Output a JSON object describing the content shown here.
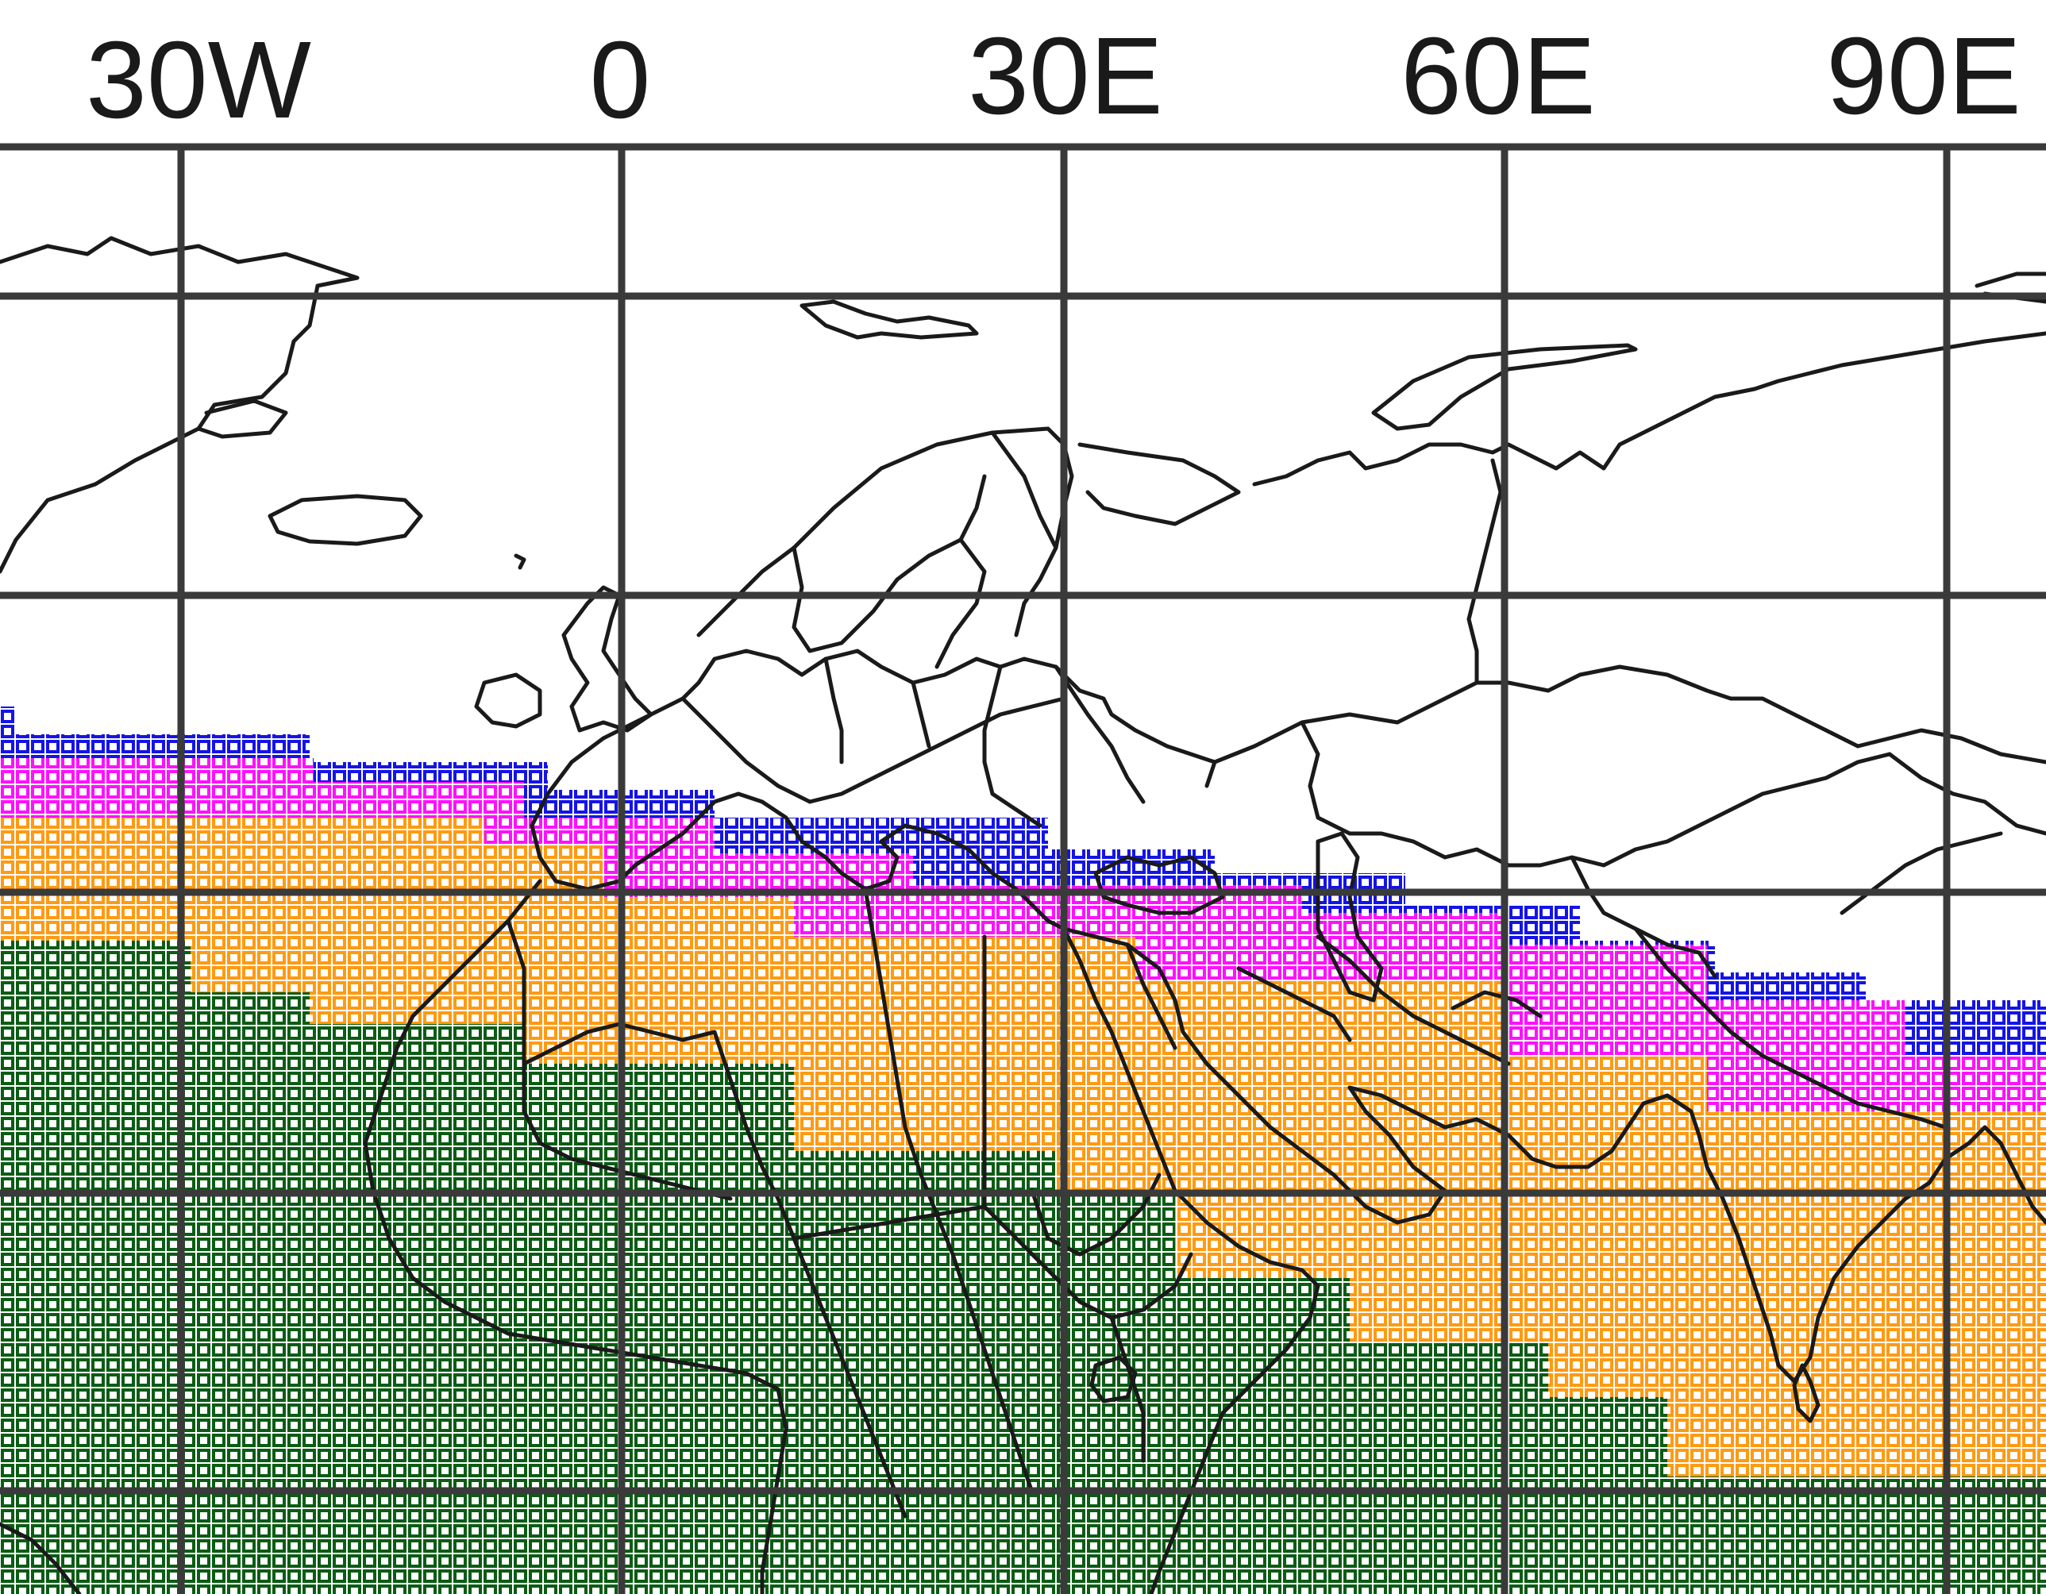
{
  "map": {
    "longitude_labels": [
      "30W",
      "0",
      "30E",
      "60E",
      "90E"
    ],
    "colors": {
      "background": "#ffffff",
      "gridline": "#3a3a3a",
      "coastline": "#1a1a1a",
      "zone_blue": "#1414e6",
      "zone_magenta": "#ff10ff",
      "zone_orange": "#ff9a12",
      "zone_green": "#0b5c14"
    },
    "grid_cell_pattern": "hollow-square",
    "zones_north_to_south": [
      "blue",
      "magenta",
      "orange",
      "green"
    ]
  }
}
